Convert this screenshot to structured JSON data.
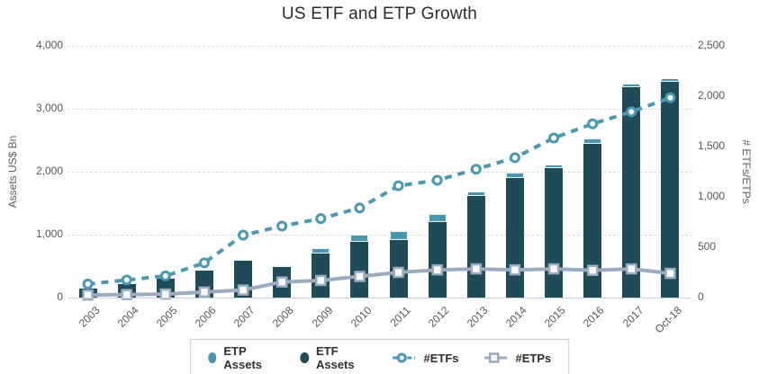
{
  "title": "US ETF and ETP Growth",
  "axes": {
    "left": {
      "title": "Assets US$ Bn",
      "tick_labels": [
        "0",
        "1,000",
        "2,000",
        "3,000",
        "4,000"
      ]
    },
    "right": {
      "title": "# ETFs/ETPs",
      "tick_labels": [
        "0",
        "500",
        "1,000",
        "1,500",
        "2,000",
        "2,500"
      ]
    },
    "x": {
      "labels": [
        "2003",
        "2004",
        "2005",
        "2006",
        "2007",
        "2008",
        "2009",
        "2010",
        "2011",
        "2012",
        "2013",
        "2014",
        "2015",
        "2016",
        "2017",
        "Oct-18"
      ]
    }
  },
  "legend": {
    "items": [
      {
        "label": "ETP Assets",
        "marker": "filled-circle-light-teal"
      },
      {
        "label": "ETF Assets",
        "marker": "filled-circle-dark-teal"
      },
      {
        "label": "#ETFs",
        "marker": "open-circle-on-dashed-line"
      },
      {
        "label": "#ETPs",
        "marker": "open-square-on-solid-line"
      }
    ]
  },
  "colors": {
    "etf_assets_bar": "#204b59",
    "etp_assets_bar": "#4797b1",
    "etfs_line": "#4a98b2",
    "etps_line": "#9aacc0",
    "marker_fill": "#fafbf8",
    "gridline": "#dcdcdc",
    "baseline": "#c8d4e2",
    "tick_text": "#56575b",
    "title_text": "#2b2b2b"
  },
  "chart_data": {
    "type": "bar",
    "subtype": "stacked bars (left axis) + two line series with markers (right axis), dual y-axes",
    "title": "US ETF and ETP Growth",
    "categories": [
      "2003",
      "2004",
      "2005",
      "2006",
      "2007",
      "2008",
      "2009",
      "2010",
      "2011",
      "2012",
      "2013",
      "2014",
      "2015",
      "2016",
      "2017",
      "Oct-18"
    ],
    "series": [
      {
        "name": "ETF Assets",
        "type": "bar",
        "stack": "assets",
        "axis": "left",
        "values": [
          150,
          215,
          295,
          425,
          585,
          490,
          700,
          890,
          920,
          1205,
          1610,
          1900,
          2060,
          2450,
          3345,
          3430
        ]
      },
      {
        "name": "ETP Assets",
        "type": "bar",
        "stack": "assets",
        "axis": "left",
        "values": [
          5,
          8,
          8,
          12,
          20,
          25,
          80,
          110,
          135,
          130,
          80,
          90,
          60,
          85,
          55,
          60
        ]
      },
      {
        "name": "#ETFs",
        "type": "line",
        "style": "dashed",
        "marker": "open-circle",
        "axis": "right",
        "values": [
          135,
          175,
          215,
          345,
          620,
          710,
          785,
          890,
          1110,
          1165,
          1275,
          1390,
          1585,
          1725,
          1845,
          1985
        ]
      },
      {
        "name": "#ETPs",
        "type": "line",
        "style": "solid",
        "marker": "open-square",
        "axis": "right",
        "values": [
          25,
          30,
          35,
          55,
          75,
          155,
          170,
          210,
          250,
          275,
          285,
          275,
          285,
          270,
          285,
          240
        ]
      }
    ],
    "xlabel": "",
    "ylabel_left": "Assets US$ Bn",
    "ylabel_right": "# ETFs/ETPs",
    "ylim_left": [
      0,
      4000
    ],
    "ylim_right": [
      0,
      2500
    ],
    "grid": "horizontal dashed gridlines at left-axis ticks",
    "legend_position": "bottom center, boxed"
  }
}
